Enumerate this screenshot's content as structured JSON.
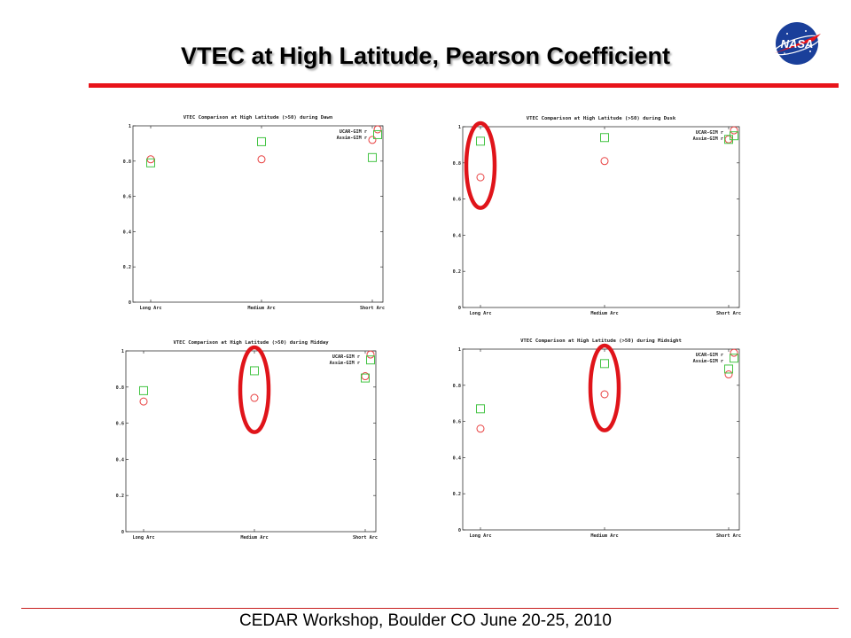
{
  "slide": {
    "title": "VTEC at High Latitude, Pearson Coefficient",
    "footer": "CEDAR Workshop, Boulder CO June 20-25, 2010",
    "logo_text": "NASA",
    "colors": {
      "accent_rule": "#e8141a",
      "highlight_ellipse": "#e0141a",
      "square_marker": "#44c444",
      "circle_marker": "#e84040"
    }
  },
  "chart_data": [
    {
      "type": "scatter",
      "title": "VTEC Comparison at High Latitude (>50) during Dawn",
      "categories": [
        "Long Arc",
        "Medium Arc",
        "Short Arc"
      ],
      "y_ticks": [
        "0",
        "0.2",
        "0.4",
        "0.6",
        "0.8",
        "1"
      ],
      "ylim": [
        0,
        1
      ],
      "grid": false,
      "legend_position": "top-right",
      "series": [
        {
          "name": "UCAR-GIM r",
          "marker": "circle",
          "color": "#e84040",
          "values": [
            0.81,
            0.81,
            0.92
          ]
        },
        {
          "name": "Assim-GIM r",
          "marker": "square",
          "color": "#44c444",
          "values": [
            0.79,
            0.91,
            0.82
          ]
        }
      ],
      "extra_points": [
        {
          "series": "UCAR-GIM r",
          "category": "Short Arc",
          "value": 0.98
        },
        {
          "series": "Assim-GIM r",
          "category": "Short Arc",
          "value": 0.95
        }
      ],
      "highlights": []
    },
    {
      "type": "scatter",
      "title": "VTEC Comparison at High Latitude (>50) during Dusk",
      "categories": [
        "Long Arc",
        "Medium Arc",
        "Short Arc"
      ],
      "y_ticks": [
        "0",
        "0.2",
        "0.4",
        "0.6",
        "0.8",
        "1"
      ],
      "ylim": [
        0,
        1
      ],
      "grid": false,
      "legend_position": "top-right",
      "series": [
        {
          "name": "UCAR-GIM r",
          "marker": "circle",
          "color": "#e84040",
          "values": [
            0.72,
            0.81,
            0.93
          ]
        },
        {
          "name": "Assim-GIM r",
          "marker": "square",
          "color": "#44c444",
          "values": [
            0.92,
            0.94,
            0.93
          ]
        }
      ],
      "extra_points": [
        {
          "series": "UCAR-GIM r",
          "category": "Short Arc",
          "value": 0.98
        },
        {
          "series": "Assim-GIM r",
          "category": "Short Arc",
          "value": 0.95
        }
      ],
      "highlights": [
        "Long Arc"
      ]
    },
    {
      "type": "scatter",
      "title": "VTEC Comparison at High Latitude (>50) during Midday",
      "categories": [
        "Long Arc",
        "Medium Arc",
        "Short Arc"
      ],
      "y_ticks": [
        "0",
        "0.2",
        "0.4",
        "0.6",
        "0.8",
        "1"
      ],
      "ylim": [
        0,
        1
      ],
      "grid": false,
      "legend_position": "top-right",
      "series": [
        {
          "name": "UCAR-GIM r",
          "marker": "circle",
          "color": "#e84040",
          "values": [
            0.72,
            0.74,
            0.86
          ]
        },
        {
          "name": "Assim-GIM r",
          "marker": "square",
          "color": "#44c444",
          "values": [
            0.78,
            0.89,
            0.85
          ]
        }
      ],
      "extra_points": [
        {
          "series": "UCAR-GIM r",
          "category": "Short Arc",
          "value": 0.98
        },
        {
          "series": "Assim-GIM r",
          "category": "Short Arc",
          "value": 0.95
        }
      ],
      "highlights": [
        "Medium Arc"
      ]
    },
    {
      "type": "scatter",
      "title": "VTEC Comparison at High Latitude (>50) during Midnight",
      "categories": [
        "Long Arc",
        "Medium Arc",
        "Short Arc"
      ],
      "y_ticks": [
        "0",
        "0.2",
        "0.4",
        "0.6",
        "0.8",
        "1"
      ],
      "ylim": [
        0,
        1
      ],
      "grid": false,
      "legend_position": "top-right",
      "series": [
        {
          "name": "UCAR-GIM r",
          "marker": "circle",
          "color": "#e84040",
          "values": [
            0.56,
            0.75,
            0.86
          ]
        },
        {
          "name": "Assim-GIM r",
          "marker": "square",
          "color": "#44c444",
          "values": [
            0.67,
            0.92,
            0.89
          ]
        }
      ],
      "extra_points": [
        {
          "series": "UCAR-GIM r",
          "category": "Short Arc",
          "value": 0.98
        },
        {
          "series": "Assim-GIM r",
          "category": "Short Arc",
          "value": 0.95
        }
      ],
      "highlights": [
        "Medium Arc"
      ]
    }
  ]
}
